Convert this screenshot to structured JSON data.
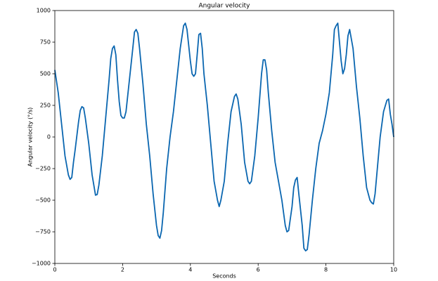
{
  "chart_data": {
    "type": "line",
    "title": "Angular velocity",
    "xlabel": "Seconds",
    "ylabel": "Angular velocity (°/s)",
    "x": [
      0,
      0.1,
      0.2,
      0.3,
      0.4,
      0.45,
      0.5,
      0.55,
      0.6,
      0.7,
      0.75,
      0.8,
      0.85,
      0.9,
      1.0,
      1.1,
      1.2,
      1.25,
      1.3,
      1.4,
      1.5,
      1.6,
      1.65,
      1.7,
      1.75,
      1.8,
      1.85,
      1.9,
      1.95,
      2.0,
      2.05,
      2.1,
      2.2,
      2.3,
      2.35,
      2.4,
      2.45,
      2.5,
      2.6,
      2.7,
      2.8,
      2.9,
      3.0,
      3.05,
      3.1,
      3.15,
      3.2,
      3.3,
      3.4,
      3.5,
      3.6,
      3.7,
      3.8,
      3.85,
      3.9,
      4.0,
      4.05,
      4.1,
      4.15,
      4.2,
      4.25,
      4.3,
      4.35,
      4.4,
      4.5,
      4.6,
      4.7,
      4.8,
      4.85,
      4.9,
      5.0,
      5.1,
      5.2,
      5.3,
      5.35,
      5.4,
      5.5,
      5.6,
      5.7,
      5.75,
      5.8,
      5.9,
      6.0,
      6.1,
      6.15,
      6.2,
      6.25,
      6.3,
      6.4,
      6.5,
      6.6,
      6.7,
      6.8,
      6.85,
      6.9,
      7.0,
      7.05,
      7.1,
      7.15,
      7.2,
      7.3,
      7.35,
      7.4,
      7.45,
      7.5,
      7.6,
      7.7,
      7.8,
      7.9,
      8.0,
      8.1,
      8.2,
      8.25,
      8.3,
      8.35,
      8.4,
      8.45,
      8.5,
      8.55,
      8.6,
      8.65,
      8.7,
      8.8,
      8.9,
      9.0,
      9.1,
      9.2,
      9.3,
      9.35,
      9.4,
      9.45,
      9.5,
      9.6,
      9.7,
      9.8,
      9.85,
      9.9,
      9.95,
      10
    ],
    "series": [
      {
        "name": "Angular velocity",
        "color": "#0a66b0",
        "values": [
          530,
          350,
          100,
          -150,
          -300,
          -335,
          -320,
          -200,
          -100,
          120,
          210,
          240,
          230,
          150,
          -50,
          -300,
          -460,
          -455,
          -380,
          -150,
          150,
          450,
          620,
          700,
          720,
          650,
          450,
          280,
          170,
          150,
          150,
          200,
          450,
          700,
          830,
          850,
          820,
          700,
          420,
          100,
          -150,
          -450,
          -700,
          -780,
          -800,
          -740,
          -600,
          -250,
          0,
          200,
          450,
          700,
          880,
          900,
          850,
          600,
          500,
          480,
          500,
          650,
          810,
          820,
          700,
          500,
          250,
          -50,
          -350,
          -500,
          -550,
          -500,
          -350,
          -50,
          200,
          320,
          340,
          300,
          100,
          -200,
          -350,
          -370,
          -350,
          -150,
          150,
          500,
          610,
          610,
          530,
          350,
          50,
          -200,
          -350,
          -500,
          -700,
          -750,
          -740,
          -550,
          -400,
          -340,
          -320,
          -450,
          -700,
          -880,
          -900,
          -890,
          -780,
          -500,
          -250,
          -50,
          50,
          180,
          350,
          650,
          850,
          880,
          900,
          750,
          600,
          500,
          540,
          650,
          800,
          850,
          700,
          400,
          150,
          -150,
          -400,
          -500,
          -520,
          -530,
          -450,
          -300,
          0,
          200,
          290,
          300,
          180,
          100,
          0
        ]
      }
    ],
    "xlim": [
      0,
      10
    ],
    "xticks": [
      0,
      2,
      4,
      6,
      8,
      10
    ],
    "ylim": [
      -1000,
      1000
    ],
    "yticks": [
      {
        "value": -1000,
        "label": "−1000"
      },
      {
        "value": -750,
        "label": "−750"
      },
      {
        "value": -500,
        "label": "−500"
      },
      {
        "value": -250,
        "label": "−250"
      },
      0,
      250,
      500,
      750,
      1000
    ],
    "grid": false
  }
}
